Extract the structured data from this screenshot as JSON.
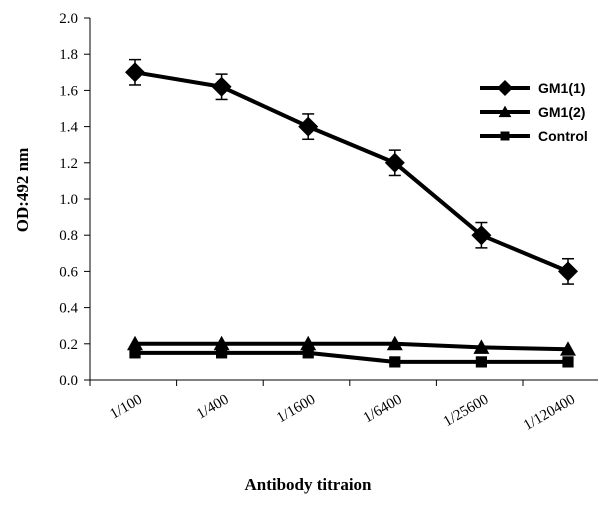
{
  "chart_data": {
    "type": "line",
    "title": "",
    "xlabel": "Antibody titraion",
    "ylabel": "OD:492 nm",
    "categories": [
      "1/100",
      "1/400",
      "1/1600",
      "1/6400",
      "1/25600",
      "1/120400"
    ],
    "ylim": [
      0,
      2.0
    ],
    "yticks": [
      "0.0",
      "0.2",
      "0.4",
      "0.6",
      "0.8",
      "1.0",
      "1.2",
      "1.4",
      "1.6",
      "1.8",
      "2.0"
    ],
    "grid": false,
    "legend_position": "top-right",
    "series": [
      {
        "name": "GM1(1)",
        "marker": "diamond",
        "color": "#000000",
        "values": [
          1.7,
          1.62,
          1.4,
          1.2,
          0.8,
          0.6
        ],
        "errors": [
          0.07,
          0.07,
          0.07,
          0.07,
          0.07,
          0.07
        ]
      },
      {
        "name": "GM1(2)",
        "marker": "triangle",
        "color": "#000000",
        "values": [
          0.2,
          0.2,
          0.2,
          0.2,
          0.18,
          0.17
        ]
      },
      {
        "name": "Control",
        "marker": "square",
        "color": "#000000",
        "values": [
          0.15,
          0.15,
          0.15,
          0.1,
          0.1,
          0.1
        ]
      }
    ]
  }
}
